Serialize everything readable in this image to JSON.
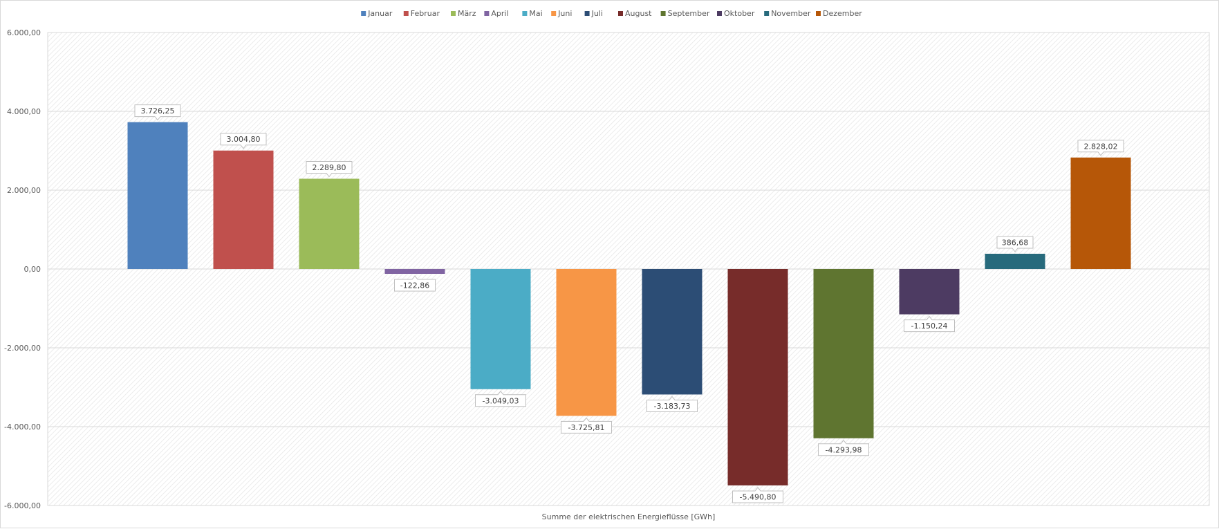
{
  "chart_data": {
    "type": "bar",
    "title": "",
    "xlabel": "Summe der elektrischen Energieflüsse [GWh]",
    "ylabel": "",
    "ylim": [
      -6000,
      6000
    ],
    "yticks": [
      6000,
      4000,
      2000,
      0,
      -2000,
      -4000,
      -6000
    ],
    "ytick_labels": [
      "6.000,00",
      "4.000,00",
      "2.000,00",
      "0,00",
      "-2.000,00",
      "-4.000,00",
      "-6.000,00"
    ],
    "grid": true,
    "legend_position": "top-center",
    "series": [
      {
        "name": "Januar",
        "value": 3726.25,
        "label": "3.726,25",
        "color": "#4F81BD"
      },
      {
        "name": "Februar",
        "value": 3004.8,
        "label": "3.004,80",
        "color": "#C0504D"
      },
      {
        "name": "März",
        "value": 2289.8,
        "label": "2.289,80",
        "color": "#9BBB59"
      },
      {
        "name": "April",
        "value": -122.86,
        "label": "-122,86",
        "color": "#8064A2"
      },
      {
        "name": "Mai",
        "value": -3049.03,
        "label": "-3.049,03",
        "color": "#4BACC6"
      },
      {
        "name": "Juni",
        "value": -3725.81,
        "label": "-3.725,81",
        "color": "#F79646"
      },
      {
        "name": "Juli",
        "value": -3183.73,
        "label": "-3.183,73",
        "color": "#2C4D75"
      },
      {
        "name": "August",
        "value": -5490.8,
        "label": "-5.490,80",
        "color": "#772C2A"
      },
      {
        "name": "September",
        "value": -4293.98,
        "label": "-4.293,98",
        "color": "#5F7530"
      },
      {
        "name": "Oktober",
        "value": -1150.24,
        "label": "-1.150,24",
        "color": "#4D3B62"
      },
      {
        "name": "November",
        "value": 386.68,
        "label": "386,68",
        "color": "#276A7C"
      },
      {
        "name": "Dezember",
        "value": 2828.02,
        "label": "2.828,02",
        "color": "#B65708"
      }
    ]
  }
}
